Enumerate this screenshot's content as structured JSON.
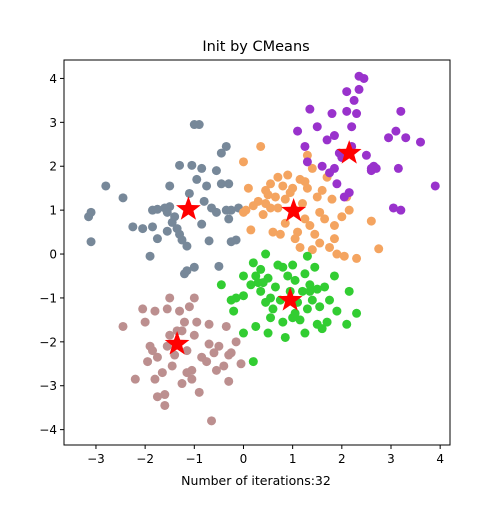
{
  "chart_data": {
    "type": "scatter",
    "title": "Init by CMeans",
    "xlabel": "Number of iterations:32",
    "ylabel": "",
    "xlim": [
      -3.65,
      4.2
    ],
    "ylim": [
      -4.35,
      4.42
    ],
    "xticks": [
      -3,
      -2,
      -1,
      0,
      1,
      2,
      3,
      4
    ],
    "yticks": [
      -4,
      -3,
      -2,
      -1,
      0,
      1,
      2,
      3,
      4
    ],
    "grid": false,
    "legend": "none",
    "series": [
      {
        "color": "#778899",
        "points": [
          [
            -3.15,
            0.85
          ],
          [
            -3.1,
            0.95
          ],
          [
            -3.1,
            0.28
          ],
          [
            -2.8,
            1.55
          ],
          [
            -2.45,
            1.28
          ],
          [
            -2.25,
            0.62
          ],
          [
            -2.05,
            0.58
          ],
          [
            -1.9,
            -0.05
          ],
          [
            -1.85,
            1.0
          ],
          [
            -1.85,
            0.62
          ],
          [
            -1.75,
            0.35
          ],
          [
            -1.6,
            1.05
          ],
          [
            -1.55,
            0.52
          ],
          [
            -1.5,
            1.55
          ],
          [
            -1.5,
            1.08
          ],
          [
            -1.45,
            0.72
          ],
          [
            -1.4,
            0.85
          ],
          [
            -1.35,
            0.58
          ],
          [
            -1.3,
            2.02
          ],
          [
            -1.3,
            0.45
          ],
          [
            -1.25,
            0.32
          ],
          [
            -1.2,
            -0.45
          ],
          [
            -1.15,
            -0.38
          ],
          [
            -1.15,
            0.18
          ],
          [
            -1.1,
            1.38
          ],
          [
            -1.05,
            2.02
          ],
          [
            -1.0,
            -0.3
          ],
          [
            -0.95,
            1.7
          ],
          [
            -0.9,
            2.95
          ],
          [
            -0.85,
            1.95
          ],
          [
            -0.85,
            0.68
          ],
          [
            -0.8,
            1.2
          ],
          [
            -0.75,
            1.55
          ],
          [
            -0.7,
            0.3
          ],
          [
            -0.65,
            1.05
          ],
          [
            -0.55,
            1.9
          ],
          [
            -0.55,
            0.95
          ],
          [
            -0.5,
            -0.28
          ],
          [
            -0.45,
            2.3
          ],
          [
            -0.45,
            1.6
          ],
          [
            -0.35,
            1.0
          ],
          [
            -0.35,
            2.45
          ],
          [
            -0.3,
            1.6
          ],
          [
            -0.3,
            0.8
          ],
          [
            -0.25,
            1.0
          ],
          [
            -0.25,
            0.28
          ],
          [
            -0.15,
            0.32
          ],
          [
            -0.1,
            1.05
          ],
          [
            -1.55,
            0.95
          ],
          [
            -1.75,
            1.02
          ],
          [
            -1.0,
            2.95
          ]
        ]
      },
      {
        "color": "#F4A460",
        "points": [
          [
            0.0,
            2.1
          ],
          [
            0.0,
            0.95
          ],
          [
            0.05,
            1.0
          ],
          [
            0.1,
            1.5
          ],
          [
            0.15,
            0.55
          ],
          [
            0.2,
            1.1
          ],
          [
            0.3,
            1.2
          ],
          [
            0.35,
            2.45
          ],
          [
            0.4,
            0.9
          ],
          [
            0.45,
            1.45
          ],
          [
            0.5,
            1.35
          ],
          [
            0.55,
            1.6
          ],
          [
            0.55,
            1.05
          ],
          [
            0.6,
            0.5
          ],
          [
            0.65,
            1.3
          ],
          [
            0.7,
            1.05
          ],
          [
            0.7,
            1.75
          ],
          [
            0.75,
            0.45
          ],
          [
            0.8,
            1.55
          ],
          [
            0.85,
            1.25
          ],
          [
            0.85,
            0.7
          ],
          [
            0.9,
            1.8
          ],
          [
            0.95,
            1.4
          ],
          [
            1.0,
            1.5
          ],
          [
            1.05,
            0.35
          ],
          [
            1.05,
            1.0
          ],
          [
            1.1,
            0.5
          ],
          [
            1.15,
            1.7
          ],
          [
            1.15,
            0.15
          ],
          [
            1.2,
            1.15
          ],
          [
            1.25,
            0.8
          ],
          [
            1.3,
            1.5
          ],
          [
            1.3,
            2.25
          ],
          [
            1.35,
            0.65
          ],
          [
            1.4,
            1.95
          ],
          [
            1.4,
            0.1
          ],
          [
            1.45,
            0.45
          ],
          [
            1.5,
            1.3
          ],
          [
            1.55,
            0.95
          ],
          [
            1.55,
            0.25
          ],
          [
            1.6,
            1.45
          ],
          [
            1.65,
            0.8
          ],
          [
            1.7,
            1.75
          ],
          [
            1.75,
            0.15
          ],
          [
            1.8,
            1.25
          ],
          [
            1.85,
            0.65
          ],
          [
            1.85,
            0.35
          ],
          [
            1.9,
            0.0
          ],
          [
            2.0,
            0.85
          ],
          [
            2.05,
            -0.05
          ],
          [
            2.1,
            1.3
          ],
          [
            2.15,
            1.0
          ],
          [
            2.3,
            -0.1
          ],
          [
            2.6,
            0.75
          ],
          [
            2.75,
            0.12
          ],
          [
            1.25,
            1.65
          ],
          [
            0.45,
            1.15
          ]
        ]
      },
      {
        "color": "#9932CC",
        "points": [
          [
            1.1,
            2.8
          ],
          [
            1.25,
            2.45
          ],
          [
            1.35,
            3.3
          ],
          [
            1.5,
            2.9
          ],
          [
            1.7,
            2.6
          ],
          [
            1.75,
            1.85
          ],
          [
            1.8,
            3.2
          ],
          [
            1.85,
            2.7
          ],
          [
            1.9,
            1.6
          ],
          [
            1.95,
            2.3
          ],
          [
            2.0,
            2.2
          ],
          [
            2.05,
            1.3
          ],
          [
            2.1,
            3.25
          ],
          [
            2.1,
            3.7
          ],
          [
            2.15,
            1.4
          ],
          [
            2.2,
            2.9
          ],
          [
            2.25,
            3.5
          ],
          [
            2.3,
            3.2
          ],
          [
            2.35,
            3.75
          ],
          [
            2.35,
            4.05
          ],
          [
            2.45,
            4.0
          ],
          [
            2.5,
            2.25
          ],
          [
            2.6,
            1.95
          ],
          [
            2.6,
            1.9
          ],
          [
            2.65,
            2.0
          ],
          [
            2.95,
            2.65
          ],
          [
            3.05,
            1.05
          ],
          [
            3.1,
            2.8
          ],
          [
            3.2,
            3.25
          ],
          [
            3.2,
            1.0
          ],
          [
            3.3,
            2.65
          ],
          [
            3.6,
            2.55
          ],
          [
            3.9,
            1.55
          ],
          [
            1.6,
            2.0
          ],
          [
            1.85,
            1.95
          ],
          [
            2.2,
            2.45
          ],
          [
            1.3,
            2.1
          ],
          [
            2.7,
            1.95
          ],
          [
            3.15,
            1.95
          ]
        ]
      },
      {
        "color": "#32CD32",
        "points": [
          [
            -0.45,
            -0.7
          ],
          [
            -0.25,
            -1.05
          ],
          [
            -0.2,
            -1.3
          ],
          [
            -0.15,
            -1.0
          ],
          [
            0.0,
            -0.5
          ],
          [
            0.0,
            -0.95
          ],
          [
            0.0,
            -1.8
          ],
          [
            0.15,
            -0.7
          ],
          [
            0.2,
            -0.2
          ],
          [
            0.25,
            -0.5
          ],
          [
            0.25,
            -1.65
          ],
          [
            0.3,
            -0.65
          ],
          [
            0.35,
            -0.85
          ],
          [
            0.35,
            -0.35
          ],
          [
            0.4,
            -0.65
          ],
          [
            0.45,
            0.0
          ],
          [
            0.45,
            -1.1
          ],
          [
            0.5,
            -0.55
          ],
          [
            0.5,
            -1.8
          ],
          [
            0.55,
            -1.45
          ],
          [
            0.6,
            -1.25
          ],
          [
            0.65,
            -0.75
          ],
          [
            0.7,
            -0.25
          ],
          [
            0.75,
            -1.05
          ],
          [
            0.8,
            -0.3
          ],
          [
            0.8,
            -1.55
          ],
          [
            0.85,
            -1.9
          ],
          [
            0.9,
            -0.5
          ],
          [
            0.95,
            -0.85
          ],
          [
            1.0,
            -0.25
          ],
          [
            1.0,
            -1.45
          ],
          [
            1.05,
            -0.6
          ],
          [
            1.1,
            -1.1
          ],
          [
            1.15,
            -1.5
          ],
          [
            1.2,
            -0.85
          ],
          [
            1.25,
            -0.45
          ],
          [
            1.25,
            -1.8
          ],
          [
            1.3,
            -0.05
          ],
          [
            1.3,
            -1.25
          ],
          [
            1.35,
            -0.7
          ],
          [
            1.4,
            -1.05
          ],
          [
            1.45,
            -0.3
          ],
          [
            1.5,
            -0.8
          ],
          [
            1.5,
            -1.6
          ],
          [
            1.55,
            -1.2
          ],
          [
            1.6,
            -1.7
          ],
          [
            1.65,
            -0.75
          ],
          [
            1.7,
            -1.55
          ],
          [
            1.75,
            -1.05
          ],
          [
            1.85,
            -0.5
          ],
          [
            1.9,
            -1.3
          ],
          [
            2.1,
            -1.6
          ],
          [
            2.15,
            -0.85
          ],
          [
            2.3,
            -1.35
          ],
          [
            0.2,
            -2.45
          ],
          [
            0.55,
            -1.0
          ],
          [
            1.05,
            -1.35
          ],
          [
            1.35,
            -0.85
          ]
        ]
      },
      {
        "color": "#BC8F8F",
        "points": [
          [
            -2.45,
            -1.65
          ],
          [
            -2.2,
            -2.85
          ],
          [
            -2.05,
            -1.25
          ],
          [
            -2.0,
            -1.55
          ],
          [
            -1.95,
            -2.45
          ],
          [
            -1.9,
            -2.1
          ],
          [
            -1.85,
            -2.2
          ],
          [
            -1.8,
            -2.85
          ],
          [
            -1.75,
            -2.35
          ],
          [
            -1.75,
            -3.25
          ],
          [
            -1.65,
            -2.7
          ],
          [
            -1.6,
            -3.2
          ],
          [
            -1.6,
            -3.45
          ],
          [
            -1.55,
            -2.1
          ],
          [
            -1.5,
            -1.85
          ],
          [
            -1.5,
            -1.0
          ],
          [
            -1.45,
            -2.55
          ],
          [
            -1.4,
            -2.3
          ],
          [
            -1.35,
            -1.75
          ],
          [
            -1.3,
            -1.3
          ],
          [
            -1.25,
            -2.95
          ],
          [
            -1.2,
            -1.55
          ],
          [
            -1.15,
            -2.2
          ],
          [
            -1.1,
            -1.2
          ],
          [
            -1.05,
            -2.65
          ],
          [
            -1.05,
            -2.85
          ],
          [
            -1.0,
            -1.85
          ],
          [
            -0.95,
            -1.55
          ],
          [
            -0.9,
            -3.15
          ],
          [
            -0.85,
            -2.35
          ],
          [
            -0.75,
            -2.45
          ],
          [
            -0.7,
            -1.6
          ],
          [
            -0.7,
            -2.05
          ],
          [
            -0.6,
            -2.25
          ],
          [
            -0.55,
            -2.65
          ],
          [
            -0.5,
            -2.1
          ],
          [
            -0.4,
            -2.55
          ],
          [
            -0.35,
            -1.65
          ],
          [
            -0.3,
            -2.9
          ],
          [
            -0.25,
            -2.25
          ],
          [
            -0.15,
            -2.0
          ],
          [
            -0.05,
            -2.5
          ],
          [
            -0.65,
            -3.8
          ],
          [
            -1.55,
            -1.25
          ],
          [
            -1.25,
            -1.75
          ],
          [
            -0.3,
            -2.3
          ],
          [
            -1.15,
            -2.7
          ],
          [
            -1.0,
            -1.0
          ],
          [
            -1.8,
            -1.3
          ]
        ]
      },
      {
        "name": "",
        "color": "#FF0000",
        "marker": "star",
        "points": [
          [
            -1.12,
            1.02
          ],
          [
            1.02,
            0.98
          ],
          [
            2.15,
            2.3
          ],
          [
            0.95,
            -1.05
          ],
          [
            -1.35,
            -2.05
          ]
        ]
      }
    ]
  }
}
